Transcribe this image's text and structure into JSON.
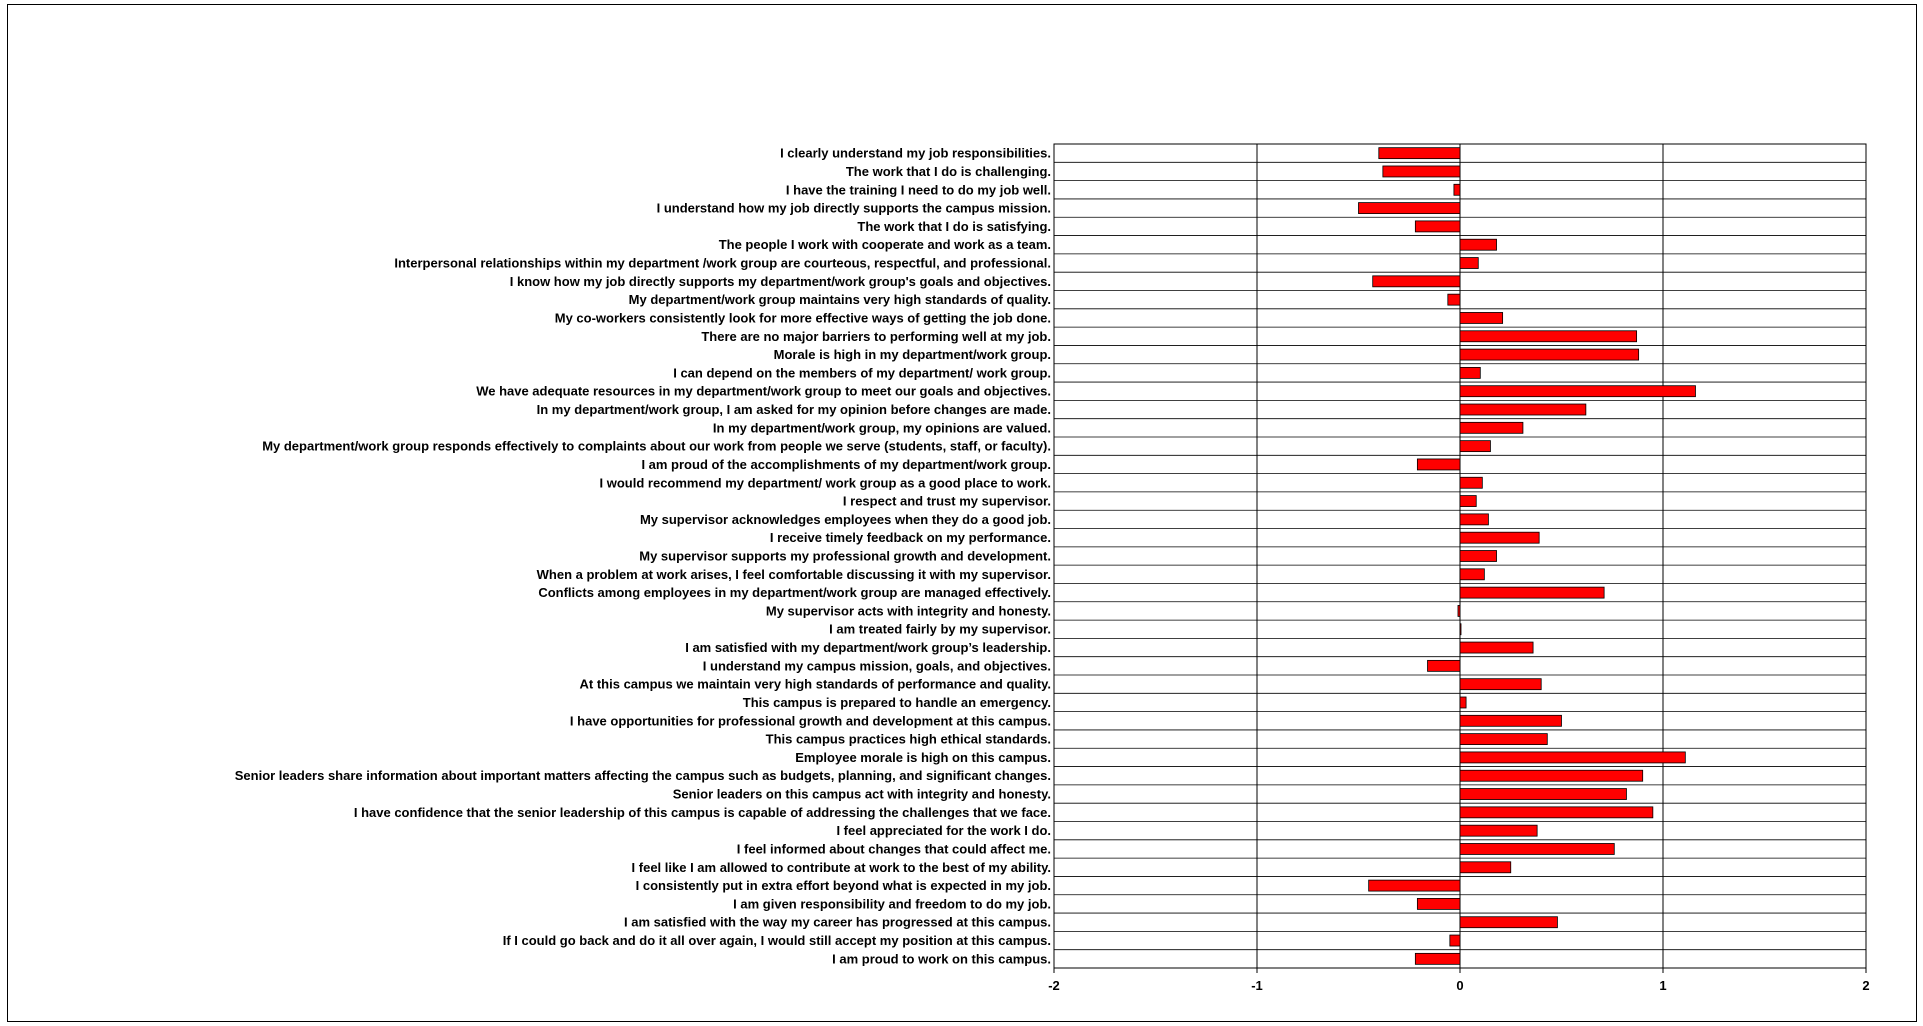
{
  "chart_data": {
    "type": "bar",
    "orientation": "horizontal",
    "title": "",
    "xlabel": "",
    "ylabel": "",
    "xlim": [
      -2,
      2
    ],
    "x_ticks": [
      -2,
      -1,
      0,
      1,
      2
    ],
    "grid": true,
    "bar_color": "#ff0000",
    "categories": [
      "I clearly understand my job responsibilities.",
      "The work that I do is challenging.",
      "I have the training I need to do my job well.",
      "I understand how my job directly supports the campus mission.",
      "The work that I do is satisfying.",
      "The people I work with cooperate and work as a team.",
      "Interpersonal relationships within my department /work group are courteous, respectful, and professional.",
      "I know how my job directly supports my department/work group's goals and objectives.",
      "My department/work group maintains very high standards of quality.",
      "My co-workers consistently look for more effective ways of getting the job done.",
      "There are no major barriers to performing well at my job.",
      "Morale is high in my department/work group.",
      "I can depend on the members of my department/ work group.",
      "We have adequate resources in my department/work group to meet our goals and objectives.",
      "In my department/work group, I am asked for my opinion before changes are made.",
      "In my department/work group, my opinions are valued.",
      "My department/work group responds effectively to complaints about our work from people we serve (students, staff, or faculty).",
      "I am proud of the accomplishments of my department/work group.",
      "I would recommend my department/ work group as a good place to work.",
      "I respect and trust my supervisor.",
      "My supervisor acknowledges employees when they do a good job.",
      "I receive timely feedback on my performance.",
      "My supervisor supports my professional growth and development.",
      "When a problem at work arises, I feel comfortable discussing it with my supervisor.",
      "Conflicts among employees in my department/work group are managed effectively.",
      "My supervisor acts with integrity and honesty.",
      "I am treated fairly by my supervisor.",
      "I am satisfied with my department/work group’s leadership.",
      "I understand my campus mission, goals, and objectives.",
      "At this campus we maintain very high standards of performance and quality.",
      "This campus is prepared to handle an emergency.",
      "I have opportunities for professional growth and development at this campus.",
      "This campus practices high ethical standards.",
      "Employee morale is high on this campus.",
      "Senior leaders share information about important matters affecting the campus such as budgets, planning, and significant changes.",
      "Senior leaders on this campus act with integrity and honesty.",
      "I have confidence that the senior leadership of this campus is capable of addressing the challenges that we face.",
      "I feel appreciated for the work I do.",
      "I feel informed about changes that could affect me.",
      "I feel like I am allowed to contribute at work to the best of my ability.",
      "I consistently put in extra effort beyond what is expected in my job.",
      "I am given responsibility and freedom to do my job.",
      "I am satisfied with the way my career has progressed at this campus.",
      "If I could go back and do it all over again, I would still accept my position at this campus.",
      "I am proud to work on this campus."
    ],
    "values": [
      -0.4,
      -0.38,
      -0.03,
      -0.5,
      -0.22,
      0.18,
      0.09,
      -0.43,
      -0.06,
      0.21,
      0.87,
      0.88,
      0.1,
      1.16,
      0.62,
      0.31,
      0.15,
      -0.21,
      0.11,
      0.08,
      0.14,
      0.39,
      0.18,
      0.12,
      0.71,
      -0.01,
      0.005,
      0.36,
      -0.16,
      0.4,
      0.03,
      0.5,
      0.43,
      1.11,
      0.9,
      0.82,
      0.95,
      0.38,
      0.76,
      0.25,
      -0.45,
      -0.21,
      0.48,
      -0.05,
      -0.22
    ]
  }
}
